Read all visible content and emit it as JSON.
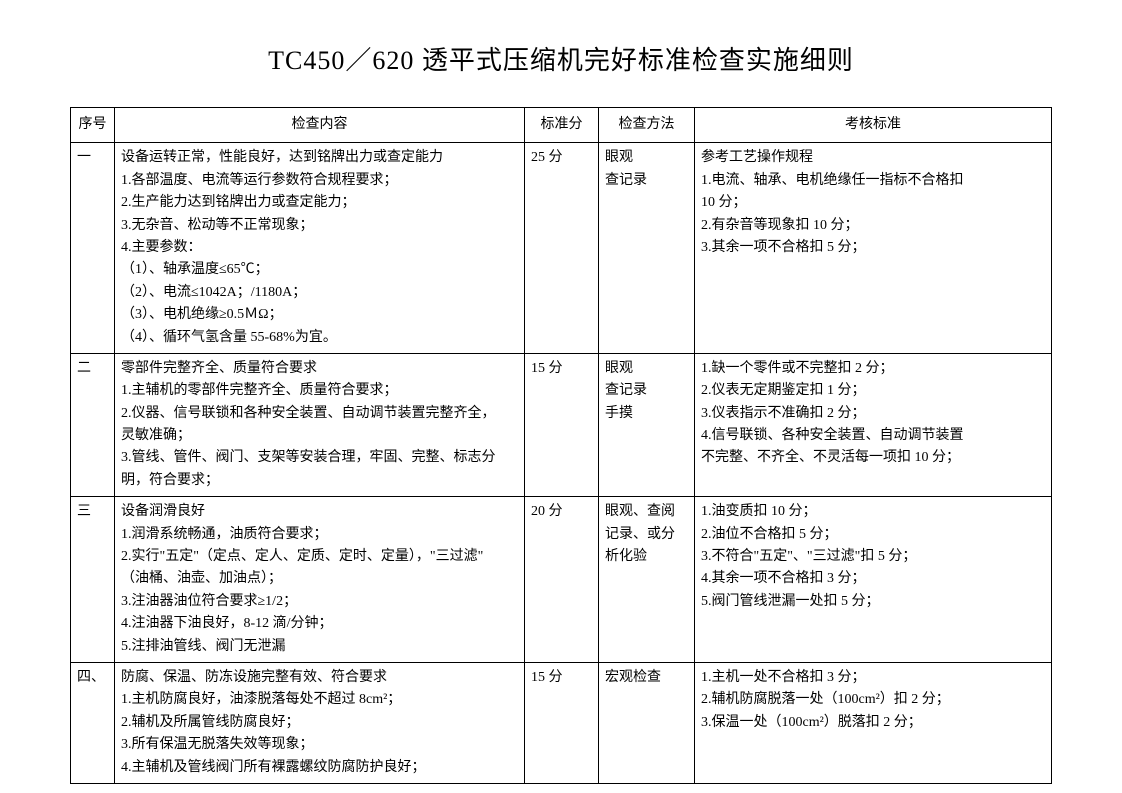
{
  "title": "TC450／620 透平式压缩机完好标准检查实施细则",
  "headers": {
    "seq": "序号",
    "content": "检查内容",
    "score": "标准分",
    "method": "检查方法",
    "criteria": "考核标准"
  },
  "rows": [
    {
      "seq": "一",
      "content": "设备运转正常，性能良好，达到铭牌出力或查定能力\n1.各部温度、电流等运行参数符合规程要求；\n2.生产能力达到铭牌出力或查定能力；\n3.无杂音、松动等不正常现象；\n4.主要参数：\n（1）、轴承温度≤65℃；\n（2）、电流≤1042A；/1180A；\n（3）、电机绝缘≥0.5ＭΩ；\n（4）、循环气氢含量 55-68%为宜。",
      "score": "25 分",
      "method": "眼观\n查记录",
      "criteria": "参考工艺操作规程\n1.电流、轴承、电机绝缘任一指标不合格扣\n10 分；\n2.有杂音等现象扣 10 分；\n3.其余一项不合格扣 5 分；"
    },
    {
      "seq": "二",
      "content": "零部件完整齐全、质量符合要求\n1.主辅机的零部件完整齐全、质量符合要求；\n2.仪器、信号联锁和各种安全装置、自动调节装置完整齐全，\n灵敏准确；\n3.管线、管件、阀门、支架等安装合理，牢固、完整、标志分\n明，符合要求；",
      "score": "15 分",
      "method": "眼观\n查记录\n手摸",
      "criteria": "1.缺一个零件或不完整扣 2 分；\n2.仪表无定期鉴定扣 1 分；\n3.仪表指示不准确扣 2 分；\n4.信号联锁、各种安全装置、自动调节装置\n不完整、不齐全、不灵活每一项扣 10 分；"
    },
    {
      "seq": "三",
      "content": "设备润滑良好\n1.润滑系统畅通，油质符合要求；\n2.实行\"五定\"（定点、定人、定质、定时、定量），\"三过滤\"\n（油桶、油壶、加油点）；\n3.注油器油位符合要求≥1/2；\n4.注油器下油良好，8-12 滴/分钟；\n5.注排油管线、阀门无泄漏",
      "score": "20 分",
      "method": "眼观、查阅\n记录、或分\n析化验",
      "criteria": "1.油变质扣 10 分；\n2.油位不合格扣 5 分；\n3.不符合\"五定\"、\"三过滤\"扣 5 分；\n4.其余一项不合格扣 3 分；\n5.阀门管线泄漏一处扣 5 分；"
    },
    {
      "seq": "四、",
      "content": "防腐、保温、防冻设施完整有效、符合要求\n1.主机防腐良好，油漆脱落每处不超过 8cm²；\n2.辅机及所属管线防腐良好；\n3.所有保温无脱落失效等现象；\n4.主辅机及管线阀门所有裸露螺纹防腐防护良好；",
      "score": "15 分",
      "method": "宏观检查",
      "criteria": "1.主机一处不合格扣 3 分；\n2.辅机防腐脱落一处（100cm²）扣 2 分；\n3.保温一处（100cm²）脱落扣 2 分；"
    }
  ]
}
